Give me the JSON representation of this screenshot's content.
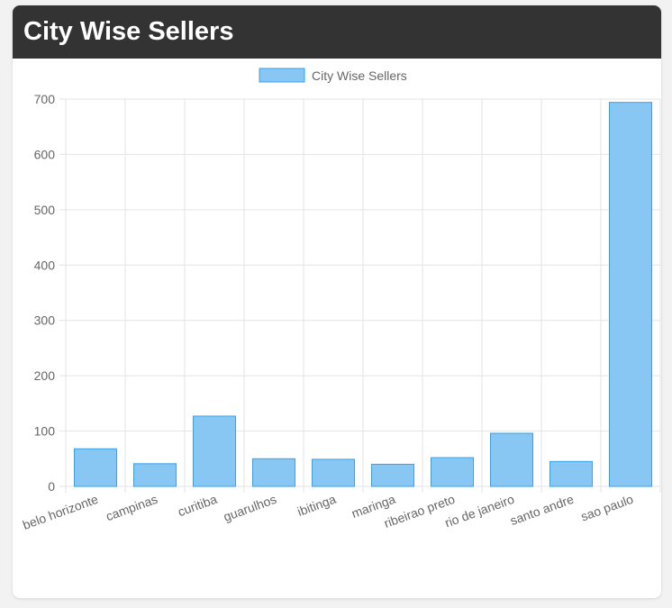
{
  "header": {
    "title": "City Wise Sellers"
  },
  "chart_data": {
    "type": "bar",
    "legend": {
      "label": "City Wise Sellers",
      "position": "top"
    },
    "categories": [
      "belo horizonte",
      "campinas",
      "curitiba",
      "guarulhos",
      "ibitinga",
      "maringa",
      "ribeirao preto",
      "rio de janeiro",
      "santo andre",
      "sao paulo"
    ],
    "series": [
      {
        "name": "City Wise Sellers",
        "values": [
          68,
          41,
          127,
          50,
          49,
          40,
          52,
          96,
          45,
          694
        ]
      }
    ],
    "ylim": [
      0,
      700
    ],
    "yticks": [
      0,
      100,
      200,
      300,
      400,
      500,
      600,
      700
    ],
    "grid": true,
    "colors": {
      "fill": "#88c6f3",
      "stroke": "#36a2eb"
    }
  }
}
